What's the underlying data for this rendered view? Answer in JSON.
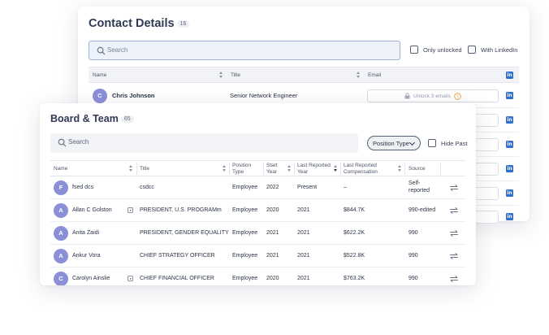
{
  "contact": {
    "title": "Contact Details",
    "count": "16",
    "search_placeholder": "Search",
    "filter_only_unlocked": "Only unlocked",
    "filter_with_linkedin": "With LinkedIn",
    "columns": {
      "name": "Name",
      "title": "Title",
      "email": "Email"
    },
    "rows": [
      {
        "initial": "C",
        "name": "Chris Johnson",
        "title": "Senior Network Engineer",
        "email_action": "Unlock 3 emails"
      }
    ]
  },
  "board": {
    "title": "Board & Team",
    "count": "65",
    "search_placeholder": "Search",
    "position_type_label": "Position Type",
    "hide_past_label": "Hide Past",
    "columns": {
      "name": "Name",
      "title": "Title",
      "position_type": [
        "Position",
        "Type"
      ],
      "start_year": [
        "Start",
        "Year"
      ],
      "last_reported_year": [
        "Last Reported",
        "Year"
      ],
      "last_reported_comp": [
        "Last Reported",
        "Compensation"
      ],
      "source": "Source"
    },
    "rows": [
      {
        "initial": "F",
        "name": "fsed dcs",
        "has_plus": false,
        "title": "csdcc",
        "position_type": "Employee",
        "start_year": "2022",
        "last_year": "Present",
        "comp": "–",
        "source": [
          "Self-",
          "reported"
        ]
      },
      {
        "initial": "A",
        "name": "Allan C Golston",
        "has_plus": true,
        "title": "PRESIDENT, U.S. PROGRAMm",
        "position_type": "Employee",
        "start_year": "2020",
        "last_year": "2021",
        "comp": "$844.7K",
        "source": [
          "990-edited"
        ]
      },
      {
        "initial": "A",
        "name": "Anita Zaidi",
        "has_plus": false,
        "title": "PRESIDENT, GENDER EQUALITY",
        "position_type": "Employee",
        "start_year": "2021",
        "last_year": "2021",
        "comp": "$622.2K",
        "source": [
          "990"
        ]
      },
      {
        "initial": "A",
        "name": "Ankur Vora",
        "has_plus": false,
        "title": "CHIEF STRATEGY OFFICER",
        "position_type": "Employee",
        "start_year": "2021",
        "last_year": "2021",
        "comp": "$522.8K",
        "source": [
          "990"
        ]
      },
      {
        "initial": "C",
        "name": "Carolyn Ainslie",
        "has_plus": true,
        "title": "CHIEF FINANCIAL OFFICER",
        "position_type": "Employee",
        "start_year": "2020",
        "last_year": "2021",
        "comp": "$763.2K",
        "source": [
          "990"
        ]
      }
    ]
  },
  "colors": {
    "accent": "#2f6fcf",
    "avatar": "#8b8fd8",
    "title": "#2f3a56"
  },
  "icons": {
    "search": "search-icon",
    "linkedin": "linkedin-icon",
    "lock": "lock-icon",
    "help": "help-circle-icon",
    "swap": "swap-icon",
    "plus": "plus-square-icon",
    "chevron": "chevron-down-icon"
  }
}
